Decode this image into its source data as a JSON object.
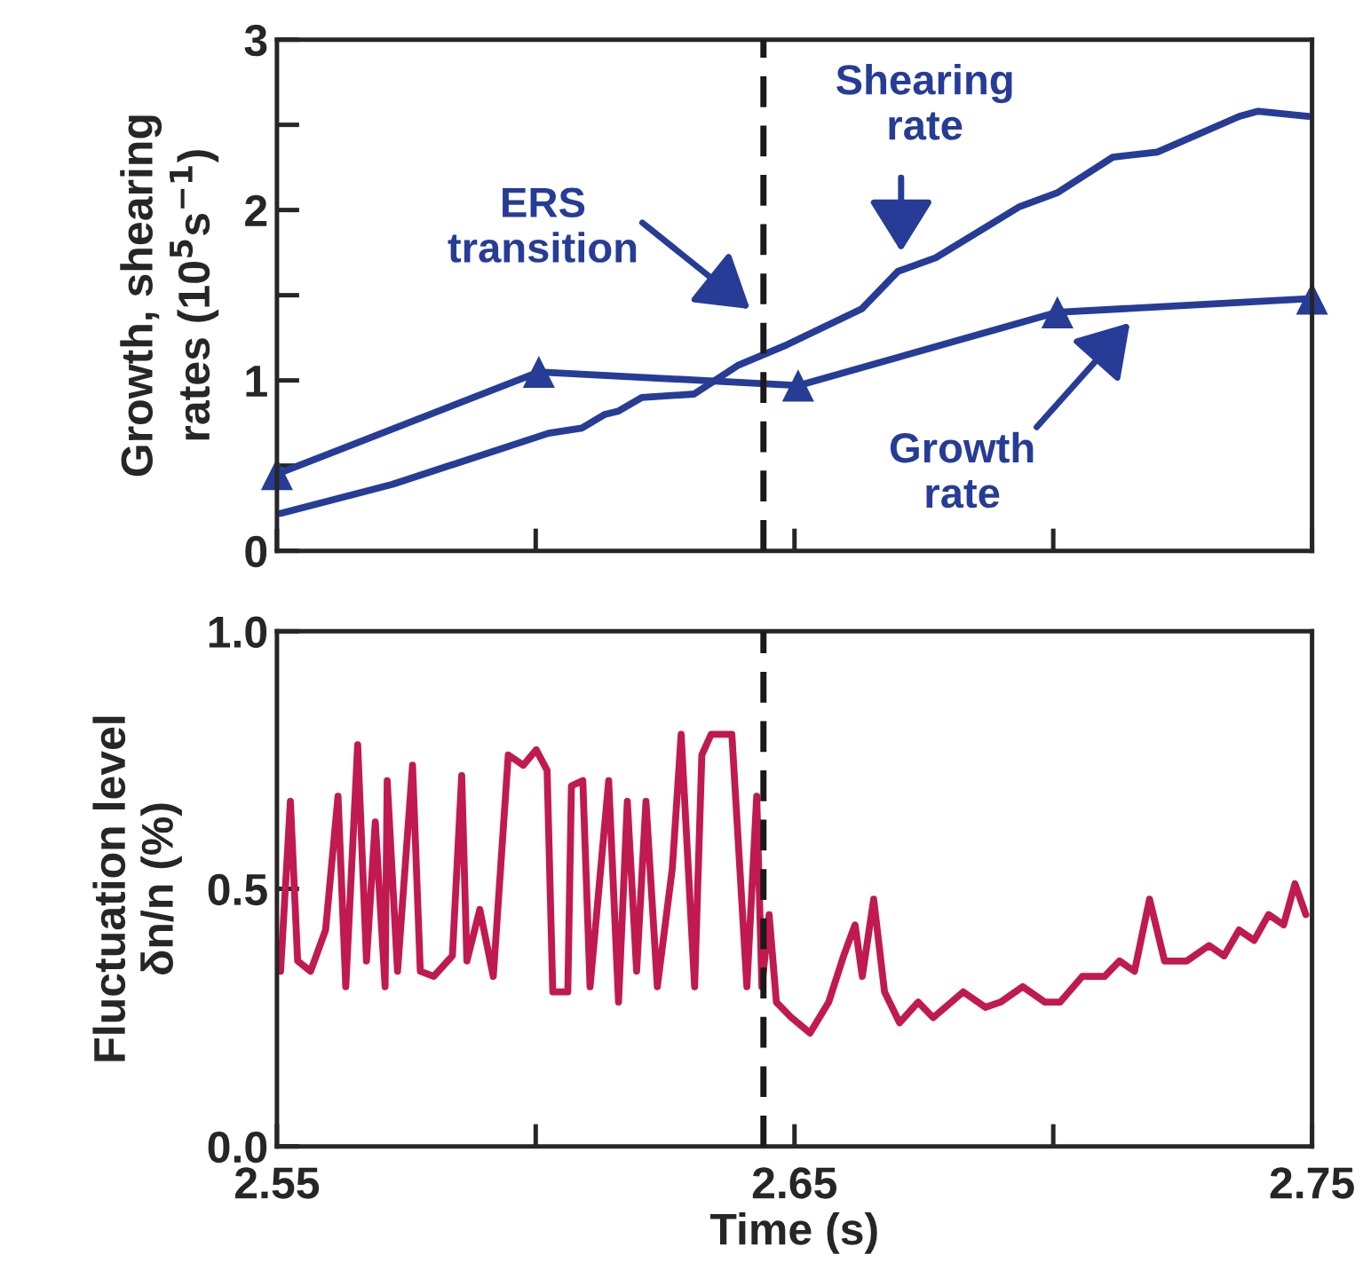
{
  "chart_data": [
    {
      "type": "line",
      "ylabel": "Growth, shearing\nrates (10$^{5}$s$^{−1}$)",
      "xlim": [
        2.55,
        2.75
      ],
      "xticks": [
        {
          "value": 2.55,
          "label": null
        },
        {
          "value": 2.6,
          "label": null
        },
        {
          "value": 2.65,
          "label": null
        },
        {
          "value": 2.7,
          "label": null
        },
        {
          "value": 2.75,
          "label": null
        }
      ],
      "ylim": [
        0,
        3
      ],
      "yticks": [
        0,
        {
          "value": 0.5,
          "label": null
        },
        1,
        {
          "value": 1.5,
          "label": null
        },
        2,
        {
          "value": 2.5,
          "label": null
        },
        3
      ],
      "tick_labels": "y",
      "grid": false,
      "legend": false,
      "line_style": "solid",
      "series": [
        {
          "color": "#263c96",
          "marker": "triangle",
          "x": [
            2.55,
            2.6006,
            2.6507,
            2.7008,
            2.75
          ],
          "values": [
            0.45,
            1.05,
            0.97,
            1.4,
            1.48
          ]
        },
        {
          "color": "#263c96",
          "marker": "none",
          "x": [
            2.5507,
            2.5723,
            2.6025,
            2.6089,
            2.6133,
            2.616,
            2.6205,
            2.6306,
            2.6392,
            2.6486,
            2.663,
            2.67,
            2.6773,
            2.6935,
            2.7007,
            2.7115,
            2.7201,
            2.736,
            2.7396,
            2.7493
          ],
          "values": [
            0.22,
            0.39,
            0.69,
            0.72,
            0.8,
            0.82,
            0.9,
            0.92,
            1.09,
            1.21,
            1.42,
            1.64,
            1.72,
            2.02,
            2.1,
            2.31,
            2.34,
            2.55,
            2.58,
            2.55
          ]
        }
      ],
      "ref_lines": [
        {
          "axis": "x",
          "value": 2.644,
          "color": "#1a1a1a",
          "line_style": "dashed"
        }
      ],
      "annotations": [
        "Shearing\nrate",
        "ERS\ntransition",
        "Growth\nrate"
      ]
    },
    {
      "type": "line",
      "xlabel": "Time (s)",
      "ylabel": "Fluctuation level\nδn/n (%)",
      "xlim": [
        2.55,
        2.75
      ],
      "xticks": [
        2.55,
        {
          "value": 2.6,
          "label": null
        },
        2.65,
        {
          "value": 2.7,
          "label": null
        },
        2.75
      ],
      "ylim": [
        0,
        1.0
      ],
      "yticks": [
        {
          "value": 0,
          "label": "0.0"
        },
        0.5,
        {
          "value": 1,
          "label": "1.0"
        }
      ],
      "grid": false,
      "legend": false,
      "line_style": "solid",
      "series": [
        {
          "color": "#c01a50",
          "marker": "none",
          "x": [
            2.5507,
            2.5526,
            2.554,
            2.5565,
            2.5594,
            2.5618,
            2.5633,
            2.5656,
            2.5673,
            2.569,
            2.5709,
            2.5713,
            2.5733,
            2.5762,
            2.5777,
            2.5803,
            2.5839,
            2.5857,
            2.5867,
            2.5892,
            2.5918,
            2.5947,
            2.5976,
            2.6001,
            2.6022,
            2.6033,
            2.6062,
            2.6069,
            2.6091,
            2.6105,
            2.6141,
            2.616,
            2.6177,
            2.6195,
            2.6213,
            2.6235,
            2.6264,
            2.6281,
            2.6307,
            2.6321,
            2.6339,
            2.6379,
            2.6408,
            2.6427,
            2.6437,
            2.6451,
            2.6465,
            2.6494,
            2.653,
            2.6566,
            2.6595,
            2.6617,
            2.6631,
            2.6653,
            2.6674,
            2.6703,
            2.6739,
            2.6768,
            2.6826,
            2.6869,
            2.6898,
            2.6941,
            2.6984,
            2.7013,
            2.7056,
            2.7099,
            2.7128,
            2.7157,
            2.7186,
            2.7215,
            2.7258,
            2.7301,
            2.733,
            2.7359,
            2.7388,
            2.7416,
            2.7445,
            2.7467,
            2.7488
          ],
          "values": [
            0.34,
            0.67,
            0.36,
            0.34,
            0.42,
            0.68,
            0.31,
            0.78,
            0.36,
            0.63,
            0.31,
            0.71,
            0.34,
            0.74,
            0.34,
            0.33,
            0.37,
            0.72,
            0.36,
            0.46,
            0.33,
            0.76,
            0.74,
            0.77,
            0.73,
            0.3,
            0.3,
            0.7,
            0.71,
            0.31,
            0.71,
            0.28,
            0.67,
            0.34,
            0.67,
            0.31,
            0.54,
            0.8,
            0.31,
            0.76,
            0.8,
            0.8,
            0.31,
            0.68,
            0.31,
            0.45,
            0.28,
            0.25,
            0.22,
            0.28,
            0.37,
            0.43,
            0.33,
            0.48,
            0.3,
            0.24,
            0.28,
            0.25,
            0.3,
            0.27,
            0.28,
            0.31,
            0.28,
            0.28,
            0.33,
            0.33,
            0.36,
            0.34,
            0.48,
            0.36,
            0.36,
            0.39,
            0.37,
            0.42,
            0.4,
            0.45,
            0.43,
            0.51,
            0.45
          ]
        }
      ],
      "ref_lines": [
        {
          "axis": "x",
          "value": 2.644,
          "color": "#1a1a1a",
          "line_style": "dashed"
        }
      ]
    }
  ]
}
